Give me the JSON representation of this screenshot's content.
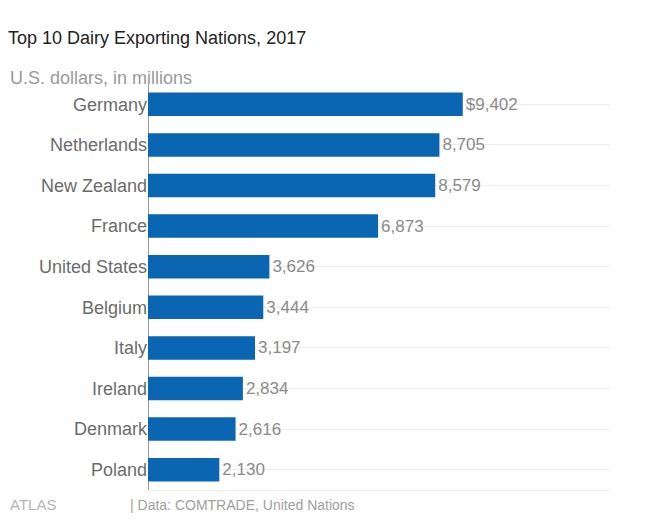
{
  "chart_data": {
    "type": "bar",
    "orientation": "horizontal",
    "title": "Top 10 Dairy Exporting Nations, 2017",
    "subtitle": "U.S. dollars, in millions",
    "annotations": [
      "ATLAS",
      "| Data: COMTRADE, United Nations"
    ],
    "categories": [
      "Germany",
      "Netherlands",
      "New Zealand",
      "France",
      "United States",
      "Belgium",
      "Italy",
      "Ireland",
      "Denmark",
      "Poland"
    ],
    "values": [
      9402,
      8705,
      8579,
      6873,
      3626,
      3444,
      3197,
      2834,
      2616,
      2130
    ],
    "value_labels": [
      "$9,402",
      "8,705",
      "8,579",
      "6,873",
      "3,626",
      "3,444",
      "3,197",
      "2,834",
      "2,616",
      "2,130"
    ],
    "data_labels": true,
    "color": "#0a66b2",
    "xlim": [
      0,
      13800
    ],
    "tick_labels": "y",
    "grid": true
  }
}
